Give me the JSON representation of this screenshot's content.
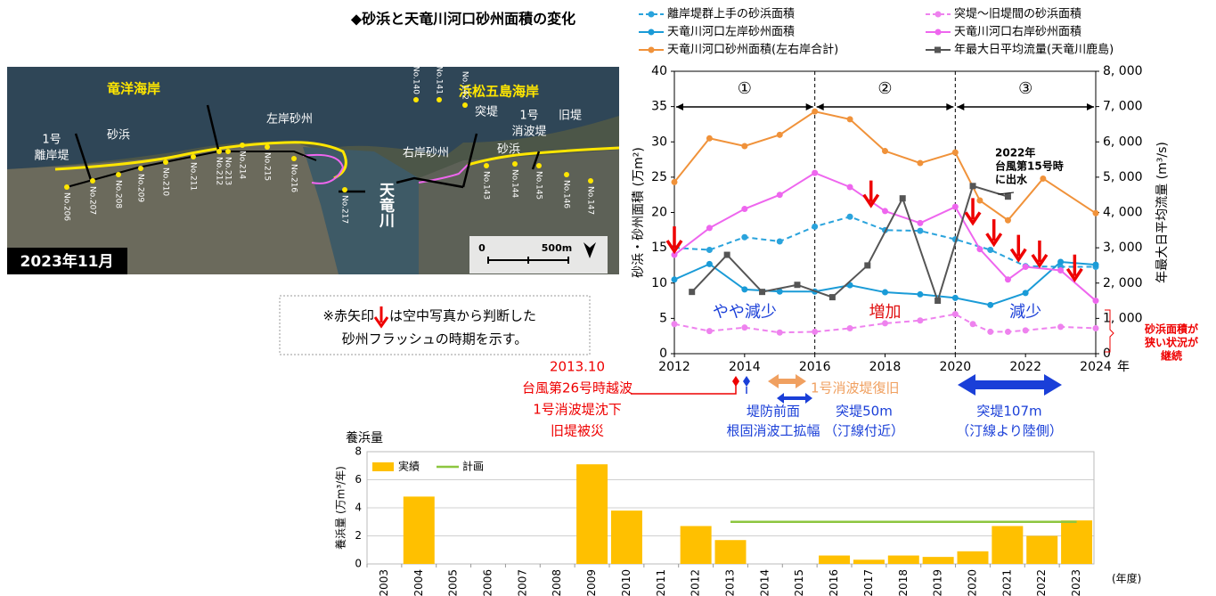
{
  "title": "◆砂浜と天竜川河口砂州面積の変化",
  "chart_data": [
    {
      "type": "line",
      "y_label": "砂浜・砂州面積 (万m²)",
      "y2_label": "年最大日平均流量 (m³/s)",
      "x_label": "年",
      "xlim": [
        2012,
        2024
      ],
      "xticks": [
        2012,
        2014,
        2016,
        2018,
        2020,
        2022,
        2024
      ],
      "ylim": [
        0,
        40
      ],
      "yticks": [
        0,
        5,
        10,
        15,
        20,
        25,
        30,
        35,
        40
      ],
      "y2lim": [
        0,
        8000
      ],
      "y2ticks": [
        0,
        {
          "value": 1000,
          "label": "1, 000"
        },
        {
          "value": 2000,
          "label": "2, 000"
        },
        {
          "value": 3000,
          "label": "3, 000"
        },
        {
          "value": 4000,
          "label": "4, 000"
        },
        {
          "value": 5000,
          "label": "5, 000"
        },
        {
          "value": 6000,
          "label": "6, 000"
        },
        {
          "value": 7000,
          "label": "7, 000"
        },
        {
          "value": 8000,
          "label": "8, 000"
        }
      ],
      "series": [
        {
          "name": "離岸堤群上手の砂浜面積",
          "color": "#2aa3dc",
          "dash": true,
          "x": [
            2012,
            2013,
            2014,
            2015,
            2016,
            2017,
            2018,
            2019,
            2020,
            2021,
            2022,
            2023,
            2024
          ],
          "values": [
            15,
            14.7,
            16.5,
            15.9,
            18,
            19.4,
            17.5,
            17.4,
            16.2,
            14.7,
            12.4,
            12.3,
            12.3
          ]
        },
        {
          "name": "突堤～旧堤間の砂浜面積",
          "color": "#ee82ee",
          "dash": true,
          "x": [
            2012,
            2013,
            2014,
            2015,
            2016,
            2017,
            2018,
            2019,
            2020,
            2020.5,
            2021,
            2021.5,
            2022,
            2023,
            2024
          ],
          "values": [
            4.2,
            3.2,
            3.7,
            3,
            3.1,
            3.6,
            4.3,
            4.7,
            5.6,
            4.2,
            3.1,
            3.1,
            3.3,
            3.8,
            3.6
          ]
        },
        {
          "name": "天竜川河口左岸砂州面積",
          "color": "#1a9bd7",
          "x": [
            2012,
            2013,
            2014,
            2015,
            2016,
            2017,
            2018,
            2019,
            2020,
            2021,
            2022,
            2023,
            2024
          ],
          "values": [
            10.5,
            12.7,
            9.1,
            8.8,
            8.8,
            9.7,
            8.7,
            8.4,
            7.9,
            6.9,
            8.6,
            13,
            12.6
          ]
        },
        {
          "name": "天竜川河口右岸砂州面積",
          "color": "#ee66ee",
          "x": [
            2012,
            2013,
            2014,
            2015,
            2016,
            2017,
            2018,
            2019,
            2020,
            2020.7,
            2021.5,
            2022,
            2023,
            2024
          ],
          "values": [
            14,
            17.8,
            20.5,
            22.5,
            25.6,
            23.6,
            20.2,
            18.5,
            20.8,
            14.8,
            10.5,
            12.3,
            11.8,
            7.5
          ]
        },
        {
          "name": "天竜川河口砂州面積(左右岸合計)",
          "color": "#f0923a",
          "x": [
            2012,
            2013,
            2014,
            2015,
            2016,
            2017,
            2018,
            2019,
            2020,
            2020.7,
            2021.5,
            2022.5,
            2024
          ],
          "values": [
            24.3,
            30.5,
            29.4,
            31,
            34.3,
            33.2,
            28.7,
            27,
            28.5,
            21.7,
            18.9,
            24.8,
            19.9
          ]
        },
        {
          "name": "年最大日平均流量(天竜川鹿島)",
          "color": "#555555",
          "axis": "y2",
          "marker": "square",
          "x": [
            2012.5,
            2013.5,
            2014.5,
            2015.5,
            2016.5,
            2017.5,
            2018.5,
            2019.5,
            2020.5,
            2021.5
          ],
          "values": [
            1750,
            2800,
            1750,
            1950,
            1600,
            2500,
            4400,
            1500,
            4750,
            4450
          ]
        }
      ],
      "periods": [
        {
          "label": "①",
          "start": 2012,
          "end": 2016,
          "trend": "やや減少",
          "color": "#1a3fd8"
        },
        {
          "label": "②",
          "start": 2016,
          "end": 2020,
          "trend": "増加",
          "color": "#e01010"
        },
        {
          "label": "③",
          "start": 2020,
          "end": 2024,
          "trend": "減少",
          "color": "#1a3fd8"
        }
      ],
      "flush_arrows": [
        {
          "x": 2012,
          "y": 14.5
        },
        {
          "x": 2017.6,
          "y": 21
        },
        {
          "x": 2020.5,
          "y": 18.5
        },
        {
          "x": 2021.1,
          "y": 15.5
        },
        {
          "x": 2021.8,
          "y": 13.3
        },
        {
          "x": 2022.4,
          "y": 12.5
        },
        {
          "x": 2023.4,
          "y": 10.5
        }
      ],
      "annotation": [
        "2022年",
        "台風第15号時",
        "に出水"
      ],
      "side_note": [
        "砂浜面積が",
        "狭い状況が",
        "継続"
      ]
    },
    {
      "type": "bar",
      "title": "養浜量",
      "y_label": "養浜量 (万m³/年)",
      "x_label": "(年度)",
      "categories": [
        "2003",
        "2004",
        "2005",
        "2006",
        "2007",
        "2008",
        "2009",
        "2010",
        "2011",
        "2012",
        "2013",
        "2014",
        "2015",
        "2016",
        "2017",
        "2018",
        "2019",
        "2020",
        "2021",
        "2022",
        "2023"
      ],
      "ylim": [
        0,
        8
      ],
      "yticks": [
        0,
        2,
        4,
        6,
        8
      ],
      "grid": true,
      "series": [
        {
          "name": "実績",
          "color": "#ffc000",
          "values": [
            null,
            4.8,
            null,
            null,
            null,
            null,
            7.1,
            3.8,
            null,
            2.7,
            1.7,
            null,
            null,
            0.6,
            0.3,
            0.6,
            0.5,
            0.9,
            2.7,
            2.0,
            3.1
          ]
        },
        {
          "name": "計画",
          "color": "#8cc63f",
          "type": "line",
          "values": [
            null,
            null,
            null,
            null,
            null,
            null,
            null,
            null,
            null,
            null,
            3,
            3,
            3,
            3,
            3,
            3,
            3,
            3,
            3,
            3,
            3
          ]
        }
      ]
    }
  ],
  "map": {
    "date": "2023年11月",
    "labels": [
      "竜洋海岸",
      "浜松五島海岸",
      "砂浜",
      "左岸砂州",
      "右岸砂州",
      "砂浜",
      "1号",
      "離岸堤",
      "突堤",
      "1号",
      "消波堤",
      "旧堤",
      "天竜川",
      "0",
      "500m"
    ],
    "stations": [
      "No.206",
      "No.207",
      "No.208",
      "No.209",
      "No.210",
      "No.211",
      "No.212",
      "No.213",
      "No.214",
      "No.215",
      "No.216",
      "No.217",
      "No.140",
      "No.141",
      "No.142",
      "No.143",
      "No.144",
      "No.145",
      "No.146",
      "No.147"
    ]
  },
  "note": [
    "※赤矢印",
    "は空中写真から判断した",
    "砂州フラッシュの時期を示す。"
  ],
  "events": {
    "red": [
      "2013.10",
      "台風第26号時越波",
      "1号消波堤沈下",
      "旧堤被災"
    ],
    "orange": "1号消波堤復旧",
    "blue1": [
      "堤防前面",
      "根固消波工拡幅"
    ],
    "blue2": [
      "突堤50m",
      "（汀線付近）"
    ],
    "blue3": [
      "突堤107m",
      "（汀線より陸側）"
    ]
  }
}
